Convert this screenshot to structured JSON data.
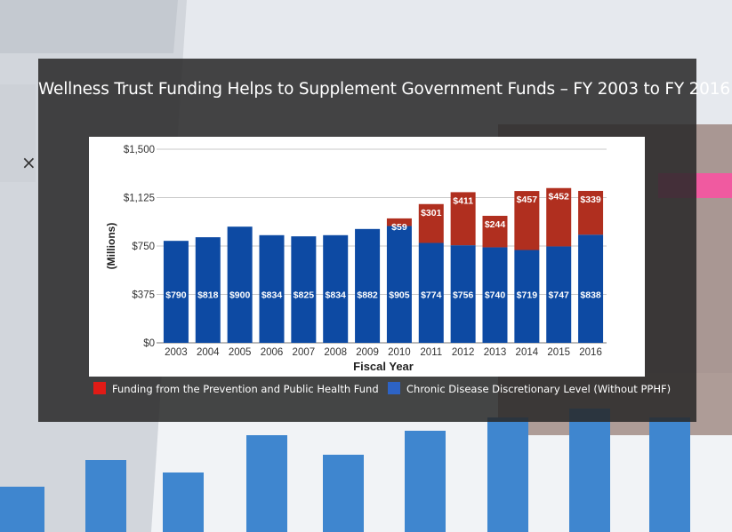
{
  "title": "Wellness Trust Funding Helps to Supplement Government Funds – FY 2003 to FY 2016",
  "colors": {
    "ppfh": "#b02f1f",
    "base": "#0d4aa3",
    "legend_ppfh": "#e11b16",
    "legend_base": "#2d63c5"
  },
  "legend": {
    "ppfh_label": "Funding from the Prevention and Public Health Fund",
    "base_label": "Chronic Disease Discretionary Level (Without PPHF)"
  },
  "chart_data": {
    "type": "bar",
    "stacked": true,
    "categories": [
      "2003",
      "2004",
      "2005",
      "2006",
      "2007",
      "2008",
      "2009",
      "2010",
      "2011",
      "2012",
      "2013",
      "2014",
      "2015",
      "2016"
    ],
    "series": [
      {
        "name": "Chronic Disease Discretionary Level (Without PPHF)",
        "values": [
          790,
          818,
          900,
          834,
          825,
          834,
          882,
          905,
          774,
          756,
          740,
          719,
          747,
          838
        ]
      },
      {
        "name": "Funding from the Prevention and Public Health Fund",
        "values": [
          null,
          null,
          null,
          null,
          null,
          null,
          null,
          59,
          301,
          411,
          244,
          457,
          452,
          339
        ]
      }
    ],
    "data_labels": {
      "base": [
        "$790",
        "$818",
        "$900",
        "$834",
        "$825",
        "$834",
        "$882",
        "$905",
        "$774",
        "$756",
        "$740",
        "$719",
        "$747",
        "$838"
      ],
      "ppfh": [
        "",
        "",
        "",
        "",
        "",
        "",
        "",
        "$59",
        "$301",
        "$411",
        "$244",
        "$457",
        "$452",
        "$339"
      ]
    },
    "yticks": [
      "$0",
      "$375",
      "$750",
      "$1,125",
      "$1,500"
    ],
    "ytick_values": [
      0,
      375,
      750,
      1125,
      1500
    ],
    "ylim": [
      0,
      1500
    ],
    "xlabel": "Fiscal Year",
    "ylabel": "(Millions)",
    "grid": true
  }
}
